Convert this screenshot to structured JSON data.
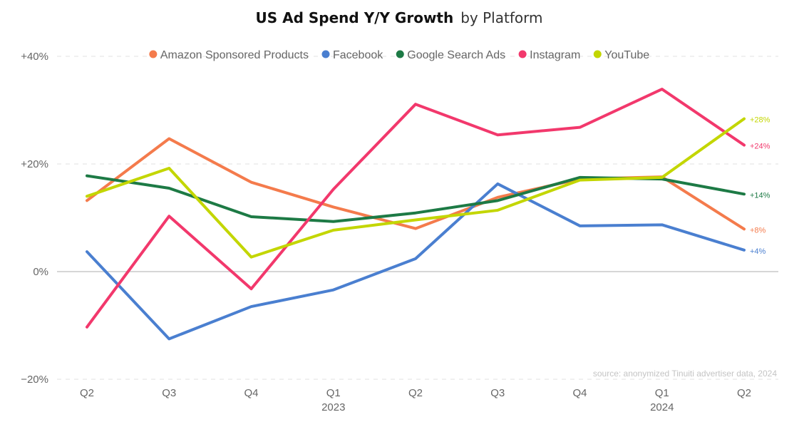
{
  "chart_data": {
    "type": "line",
    "title": {
      "bold": "US Ad Spend Y/Y Growth",
      "light": "by Platform"
    },
    "categories": [
      "Q2",
      "Q3",
      "Q4",
      "Q1",
      "Q2",
      "Q3",
      "Q4",
      "Q1",
      "Q2"
    ],
    "year_labels": [
      {
        "index": 3,
        "label": "2023"
      },
      {
        "index": 7,
        "label": "2024"
      }
    ],
    "y_ticks": [
      {
        "value": 40,
        "label": "+40%"
      },
      {
        "value": 20,
        "label": "+20%"
      },
      {
        "value": 0,
        "label": "0%"
      },
      {
        "value": -20,
        "label": "−20%"
      }
    ],
    "ylim": [
      -20,
      40
    ],
    "grid": "horizontal dashed",
    "legend_position": "top",
    "series": [
      {
        "name": "Amazon Sponsored Products",
        "color": "#f47b4c",
        "values": [
          13.2,
          24.7,
          16.6,
          12.0,
          8.0,
          13.8,
          17.2,
          17.6,
          7.9
        ],
        "end_label": "+8%"
      },
      {
        "name": "Facebook",
        "color": "#4a7fd0",
        "values": [
          3.7,
          -12.5,
          -6.5,
          -3.4,
          2.4,
          16.3,
          8.5,
          8.7,
          4.0
        ],
        "end_label": "+4%"
      },
      {
        "name": "Google Search Ads",
        "color": "#1d7a45",
        "values": [
          17.8,
          15.5,
          10.2,
          9.3,
          10.9,
          13.2,
          17.5,
          17.2,
          14.4
        ],
        "end_label": "+14%"
      },
      {
        "name": "Instagram",
        "color": "#f2386c",
        "values": [
          -10.3,
          10.3,
          -3.2,
          15.3,
          31.1,
          25.4,
          26.8,
          33.9,
          23.5
        ],
        "end_label": "+24%"
      },
      {
        "name": "YouTube",
        "color": "#c3d600",
        "values": [
          14.0,
          19.2,
          2.7,
          7.7,
          9.6,
          11.4,
          17.0,
          17.5,
          28.4
        ],
        "end_label": "+28%"
      }
    ],
    "source": "source: anonymized Tinuiti advertiser data, 2024"
  }
}
